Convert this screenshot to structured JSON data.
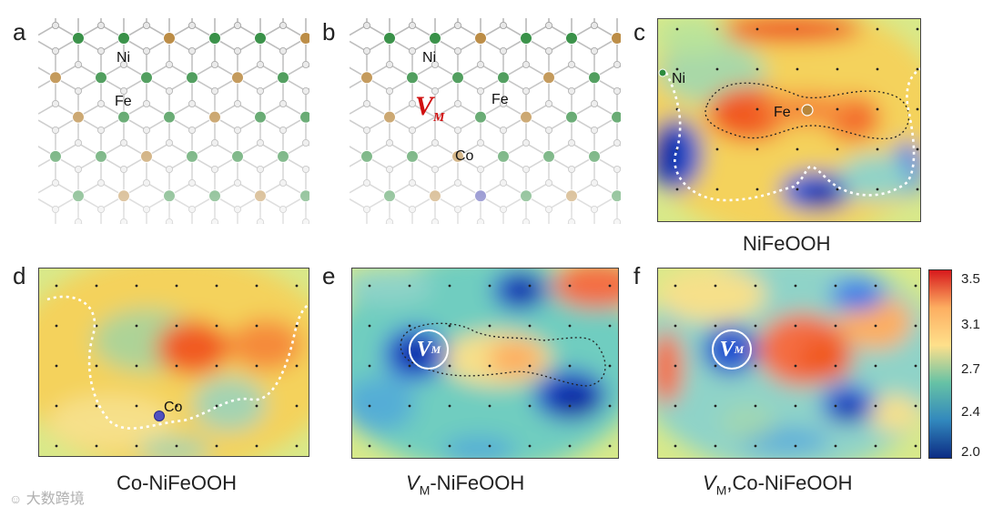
{
  "panel_labels": [
    "a",
    "b",
    "c",
    "d",
    "e",
    "f"
  ],
  "atoms": {
    "ni": "Ni",
    "fe": "Fe",
    "co": "Co",
    "vacancy_symbol": "V",
    "vacancy_sub": "M"
  },
  "captions": {
    "c": "NiFeOOH",
    "d": "Co-NiFeOOH",
    "e_main": "V",
    "e_sub": "M",
    "e_rest": "-NiFeOOH",
    "f_main": "V",
    "f_sub": "M",
    "f_rest": ",Co-NiFeOOH"
  },
  "colorbar": {
    "ticks": [
      "3.5",
      "3.1",
      "2.7",
      "2.4",
      "2.0"
    ],
    "colors": [
      "#d7191c",
      "#fdae61",
      "#fee08b",
      "#66c2a5",
      "#3288bd",
      "#0c2c84"
    ]
  },
  "colors": {
    "ni_atom": "#2e8b3e",
    "fe_atom": "#b8863b",
    "co_atom": "#3a3aa8",
    "vacancy_label": "#d01010"
  },
  "watermark": "大数跨境"
}
